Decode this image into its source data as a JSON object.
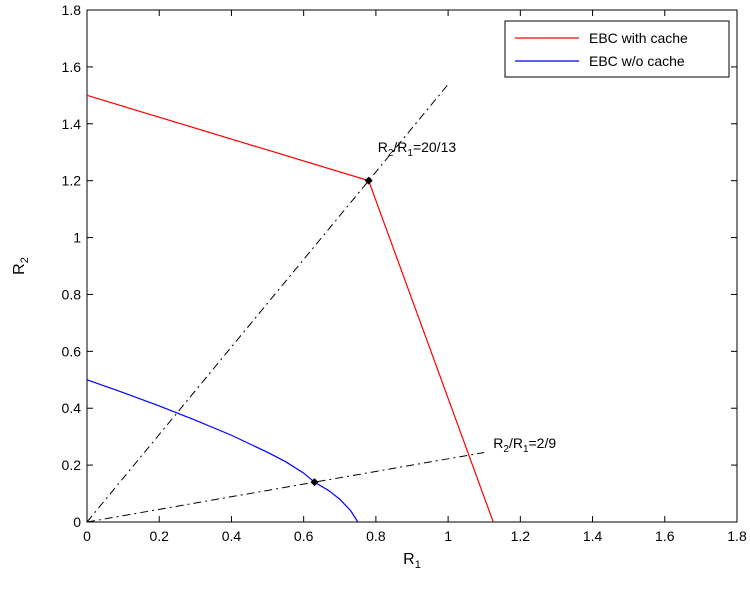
{
  "chart_data": {
    "type": "line",
    "xlim": [
      0,
      1.8
    ],
    "ylim": [
      0,
      1.8
    ],
    "xticks": [
      0,
      0.2,
      0.4,
      0.6,
      0.8,
      1,
      1.2,
      1.4,
      1.6,
      1.8
    ],
    "yticks": [
      0,
      0.2,
      0.4,
      0.6,
      0.8,
      1,
      1.2,
      1.4,
      1.6,
      1.8
    ],
    "xtick_labels": [
      "0",
      "0.2",
      "0.4",
      "0.6",
      "0.8",
      "1",
      "1.2",
      "1.4",
      "1.6",
      "1.8"
    ],
    "ytick_labels": [
      "0",
      "0.2",
      "0.4",
      "0.6",
      "0.8",
      "1",
      "1.2",
      "1.4",
      "1.6",
      "1.8"
    ],
    "xlabel": {
      "main": "R",
      "sub": "1"
    },
    "ylabel": {
      "main": "R",
      "sub": "2"
    },
    "grid": false,
    "legend_position": "top-right",
    "series": [
      {
        "name": "EBC with cache",
        "color": "#ff0000",
        "style": "solid",
        "points": [
          [
            0,
            1.5
          ],
          [
            0.78,
            1.2
          ],
          [
            1.125,
            0
          ]
        ]
      },
      {
        "name": "EBC w/o cache",
        "color": "#0000ff",
        "style": "solid",
        "points": [
          [
            0,
            0.5
          ],
          [
            0.1,
            0.455
          ],
          [
            0.2,
            0.408
          ],
          [
            0.3,
            0.358
          ],
          [
            0.4,
            0.305
          ],
          [
            0.5,
            0.245
          ],
          [
            0.55,
            0.212
          ],
          [
            0.6,
            0.172
          ],
          [
            0.63,
            0.14
          ],
          [
            0.67,
            0.11
          ],
          [
            0.7,
            0.08
          ],
          [
            0.73,
            0.04
          ],
          [
            0.75,
            0
          ]
        ]
      }
    ],
    "reference_lines": [
      {
        "color": "#000000",
        "style": "dashdot",
        "points": [
          [
            0,
            0
          ],
          [
            1.0,
            1.5385
          ]
        ]
      },
      {
        "color": "#000000",
        "style": "dashdot",
        "points": [
          [
            0,
            0
          ],
          [
            1.1,
            0.2444
          ]
        ]
      }
    ],
    "markers": [
      {
        "x": 0.78,
        "y": 1.2
      },
      {
        "x": 0.63,
        "y": 0.14
      }
    ],
    "annotations": [
      {
        "x": 0.805,
        "y": 1.3,
        "pre": "R",
        "pre_sub": "2",
        "mid": "/R",
        "mid_sub": "1",
        "post": "=20/13"
      },
      {
        "x": 1.125,
        "y": 0.26,
        "pre": "R",
        "pre_sub": "2",
        "mid": "/R",
        "mid_sub": "1",
        "post": "=2/9"
      }
    ]
  }
}
